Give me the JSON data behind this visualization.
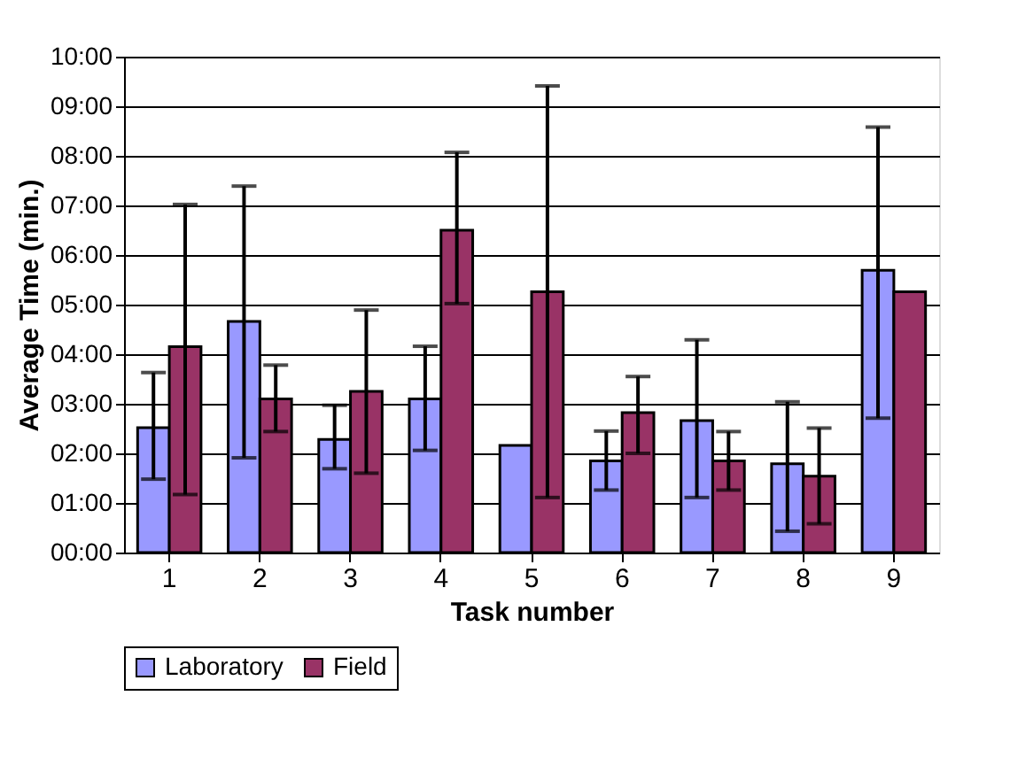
{
  "chart_data": {
    "type": "bar",
    "xlabel": "Task number",
    "ylabel": "Average Time (min.)",
    "categories": [
      "1",
      "2",
      "3",
      "4",
      "5",
      "6",
      "7",
      "8",
      "9"
    ],
    "series": [
      {
        "name": "Laboratory",
        "color": "#9999ff",
        "values": [
          2.52,
          4.66,
          2.28,
          3.1,
          2.16,
          1.85,
          2.66,
          1.79,
          5.69
        ],
        "errors": [
          [
            1.48,
            3.63
          ],
          [
            1.91,
            7.39
          ],
          [
            1.69,
            2.97
          ],
          [
            2.06,
            4.16
          ],
          null,
          [
            1.26,
            2.45
          ],
          [
            1.11,
            4.29
          ],
          [
            0.43,
            3.04
          ],
          [
            2.71,
            8.58
          ]
        ]
      },
      {
        "name": "Field",
        "color": "#993366",
        "values": [
          4.15,
          3.1,
          3.25,
          6.5,
          5.26,
          2.82,
          1.85,
          1.54,
          5.26
        ],
        "errors": [
          [
            1.17,
            7.02
          ],
          [
            2.44,
            3.78
          ],
          [
            1.6,
            4.89
          ],
          [
            5.02,
            8.07
          ],
          [
            1.11,
            9.41
          ],
          [
            2.0,
            3.55
          ],
          [
            1.26,
            2.44
          ],
          [
            0.58,
            2.51
          ],
          null
        ]
      }
    ],
    "ylim": [
      0,
      10
    ],
    "yticks": [
      {
        "value": 0,
        "label": "00:00"
      },
      {
        "value": 1,
        "label": "01:00"
      },
      {
        "value": 2,
        "label": "02:00"
      },
      {
        "value": 3,
        "label": "03:00"
      },
      {
        "value": 4,
        "label": "04:00"
      },
      {
        "value": 5,
        "label": "05:00"
      },
      {
        "value": 6,
        "label": "06:00"
      },
      {
        "value": 7,
        "label": "07:00"
      },
      {
        "value": 8,
        "label": "08:00"
      },
      {
        "value": 9,
        "label": "09:00"
      },
      {
        "value": 10,
        "label": "10:00"
      }
    ],
    "grid": "y",
    "legend": "bottom"
  }
}
